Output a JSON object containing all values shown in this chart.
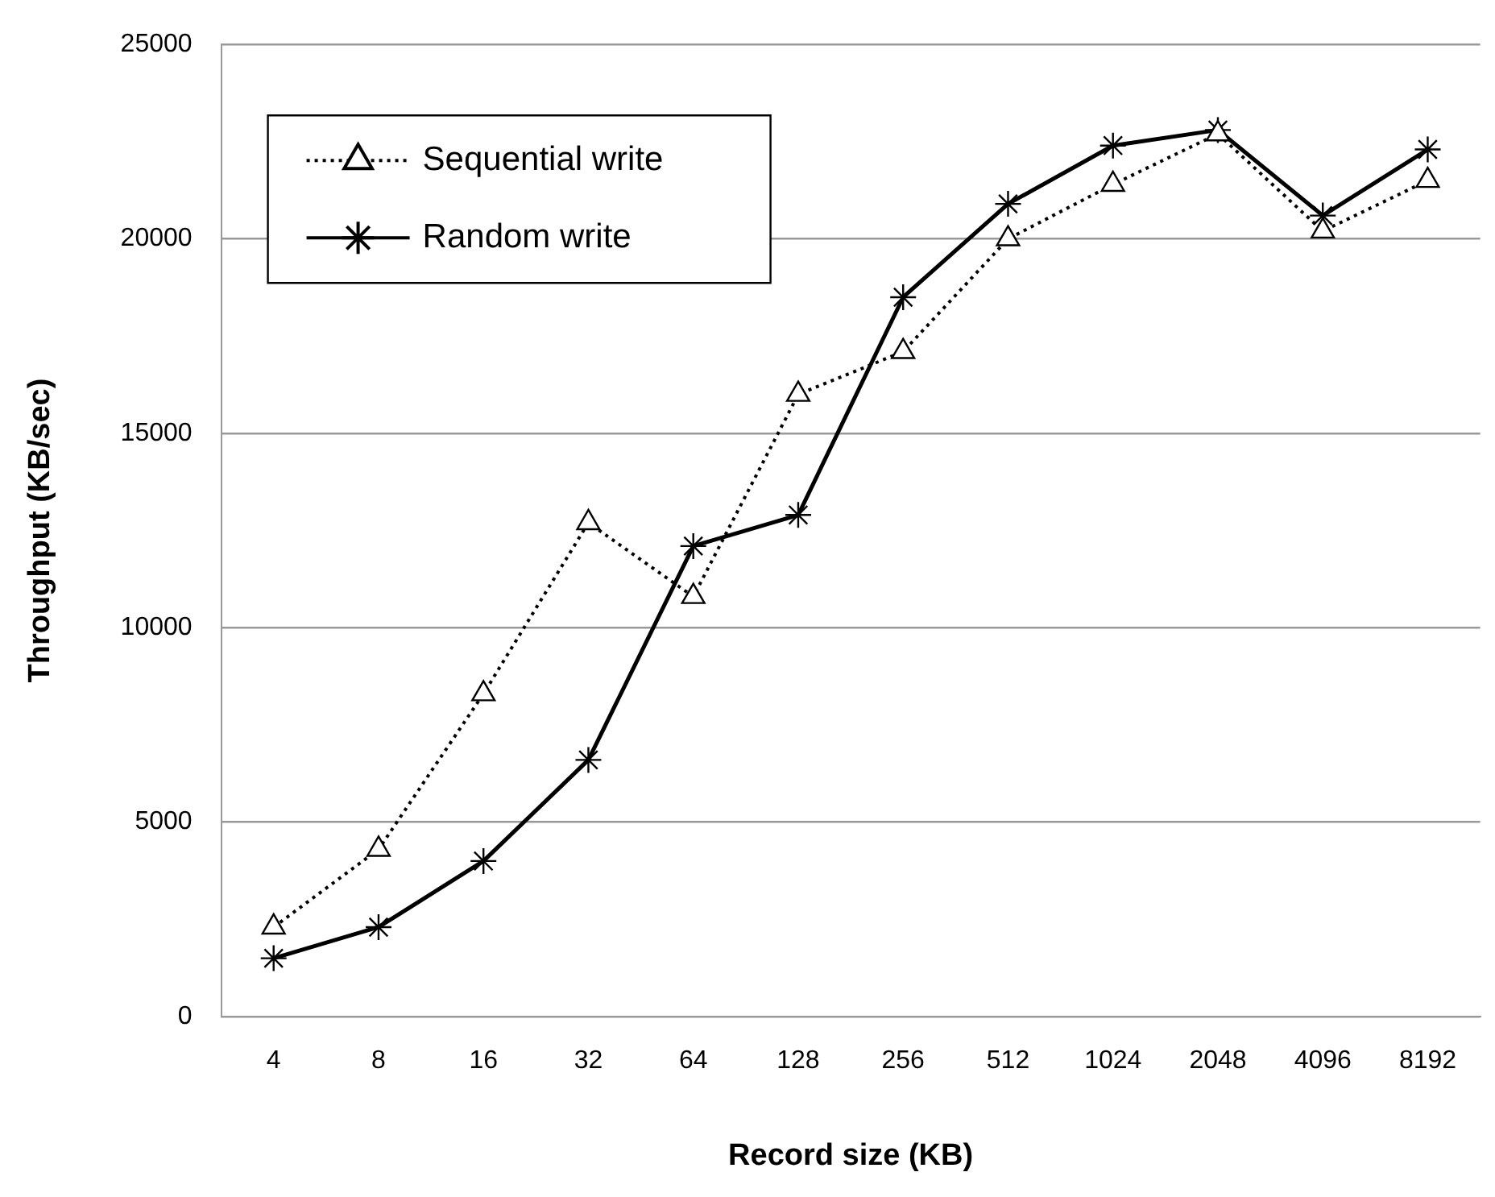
{
  "chart_data": {
    "type": "line",
    "xlabel": "Record size (KB)",
    "ylabel": "Throughput (KB/sec)",
    "categories": [
      "4",
      "8",
      "16",
      "32",
      "64",
      "128",
      "256",
      "512",
      "1024",
      "2048",
      "4096",
      "8192"
    ],
    "series": [
      {
        "name": "Sequential write",
        "color": "#000000",
        "marker": "triangle",
        "line_style": "dotted",
        "values": [
          2300,
          4300,
          8300,
          12700,
          10800,
          16000,
          17100,
          20000,
          21400,
          22700,
          20200,
          21500
        ]
      },
      {
        "name": "Random write",
        "color": "#000000",
        "marker": "cross",
        "line_style": "solid",
        "values": [
          1500,
          2300,
          4000,
          6600,
          12100,
          12900,
          18500,
          20900,
          22400,
          22800,
          20600,
          22300
        ]
      }
    ],
    "ylim": [
      0,
      25000
    ],
    "yticks": [
      0,
      5000,
      10000,
      15000,
      20000,
      25000
    ],
    "grid": "y",
    "legend": "top left"
  }
}
